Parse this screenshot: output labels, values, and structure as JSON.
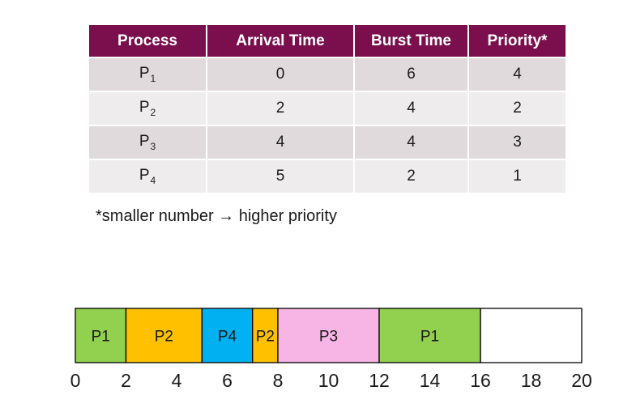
{
  "table": {
    "headers": [
      "Process",
      "Arrival Time",
      "Burst Time",
      "Priority*"
    ],
    "rows": [
      {
        "process": "P",
        "sub": "1",
        "arrival": "0",
        "burst": "6",
        "priority": "4"
      },
      {
        "process": "P",
        "sub": "2",
        "arrival": "2",
        "burst": "4",
        "priority": "2"
      },
      {
        "process": "P",
        "sub": "3",
        "arrival": "4",
        "burst": "4",
        "priority": "3"
      },
      {
        "process": "P",
        "sub": "4",
        "arrival": "5",
        "burst": "2",
        "priority": "1"
      }
    ]
  },
  "note": "*smaller number → higher priority",
  "gantt": {
    "segments": [
      {
        "label": "P1",
        "start": 0,
        "end": 2,
        "color": "#92d050"
      },
      {
        "label": "P2",
        "start": 2,
        "end": 5,
        "color": "#ffc000"
      },
      {
        "label": "P4",
        "start": 5,
        "end": 7,
        "color": "#00b0f0"
      },
      {
        "label": "P2",
        "start": 7,
        "end": 8,
        "color": "#ffc000"
      },
      {
        "label": "P3",
        "start": 8,
        "end": 12,
        "color": "#f7b5e6"
      },
      {
        "label": "P1",
        "start": 12,
        "end": 16,
        "color": "#92d050"
      }
    ],
    "empty_color": "#ffffff",
    "axis_min": 0,
    "axis_max": 20,
    "ticks": [
      "0",
      "2",
      "4",
      "6",
      "8",
      "10",
      "12",
      "14",
      "16",
      "18",
      "20"
    ]
  }
}
